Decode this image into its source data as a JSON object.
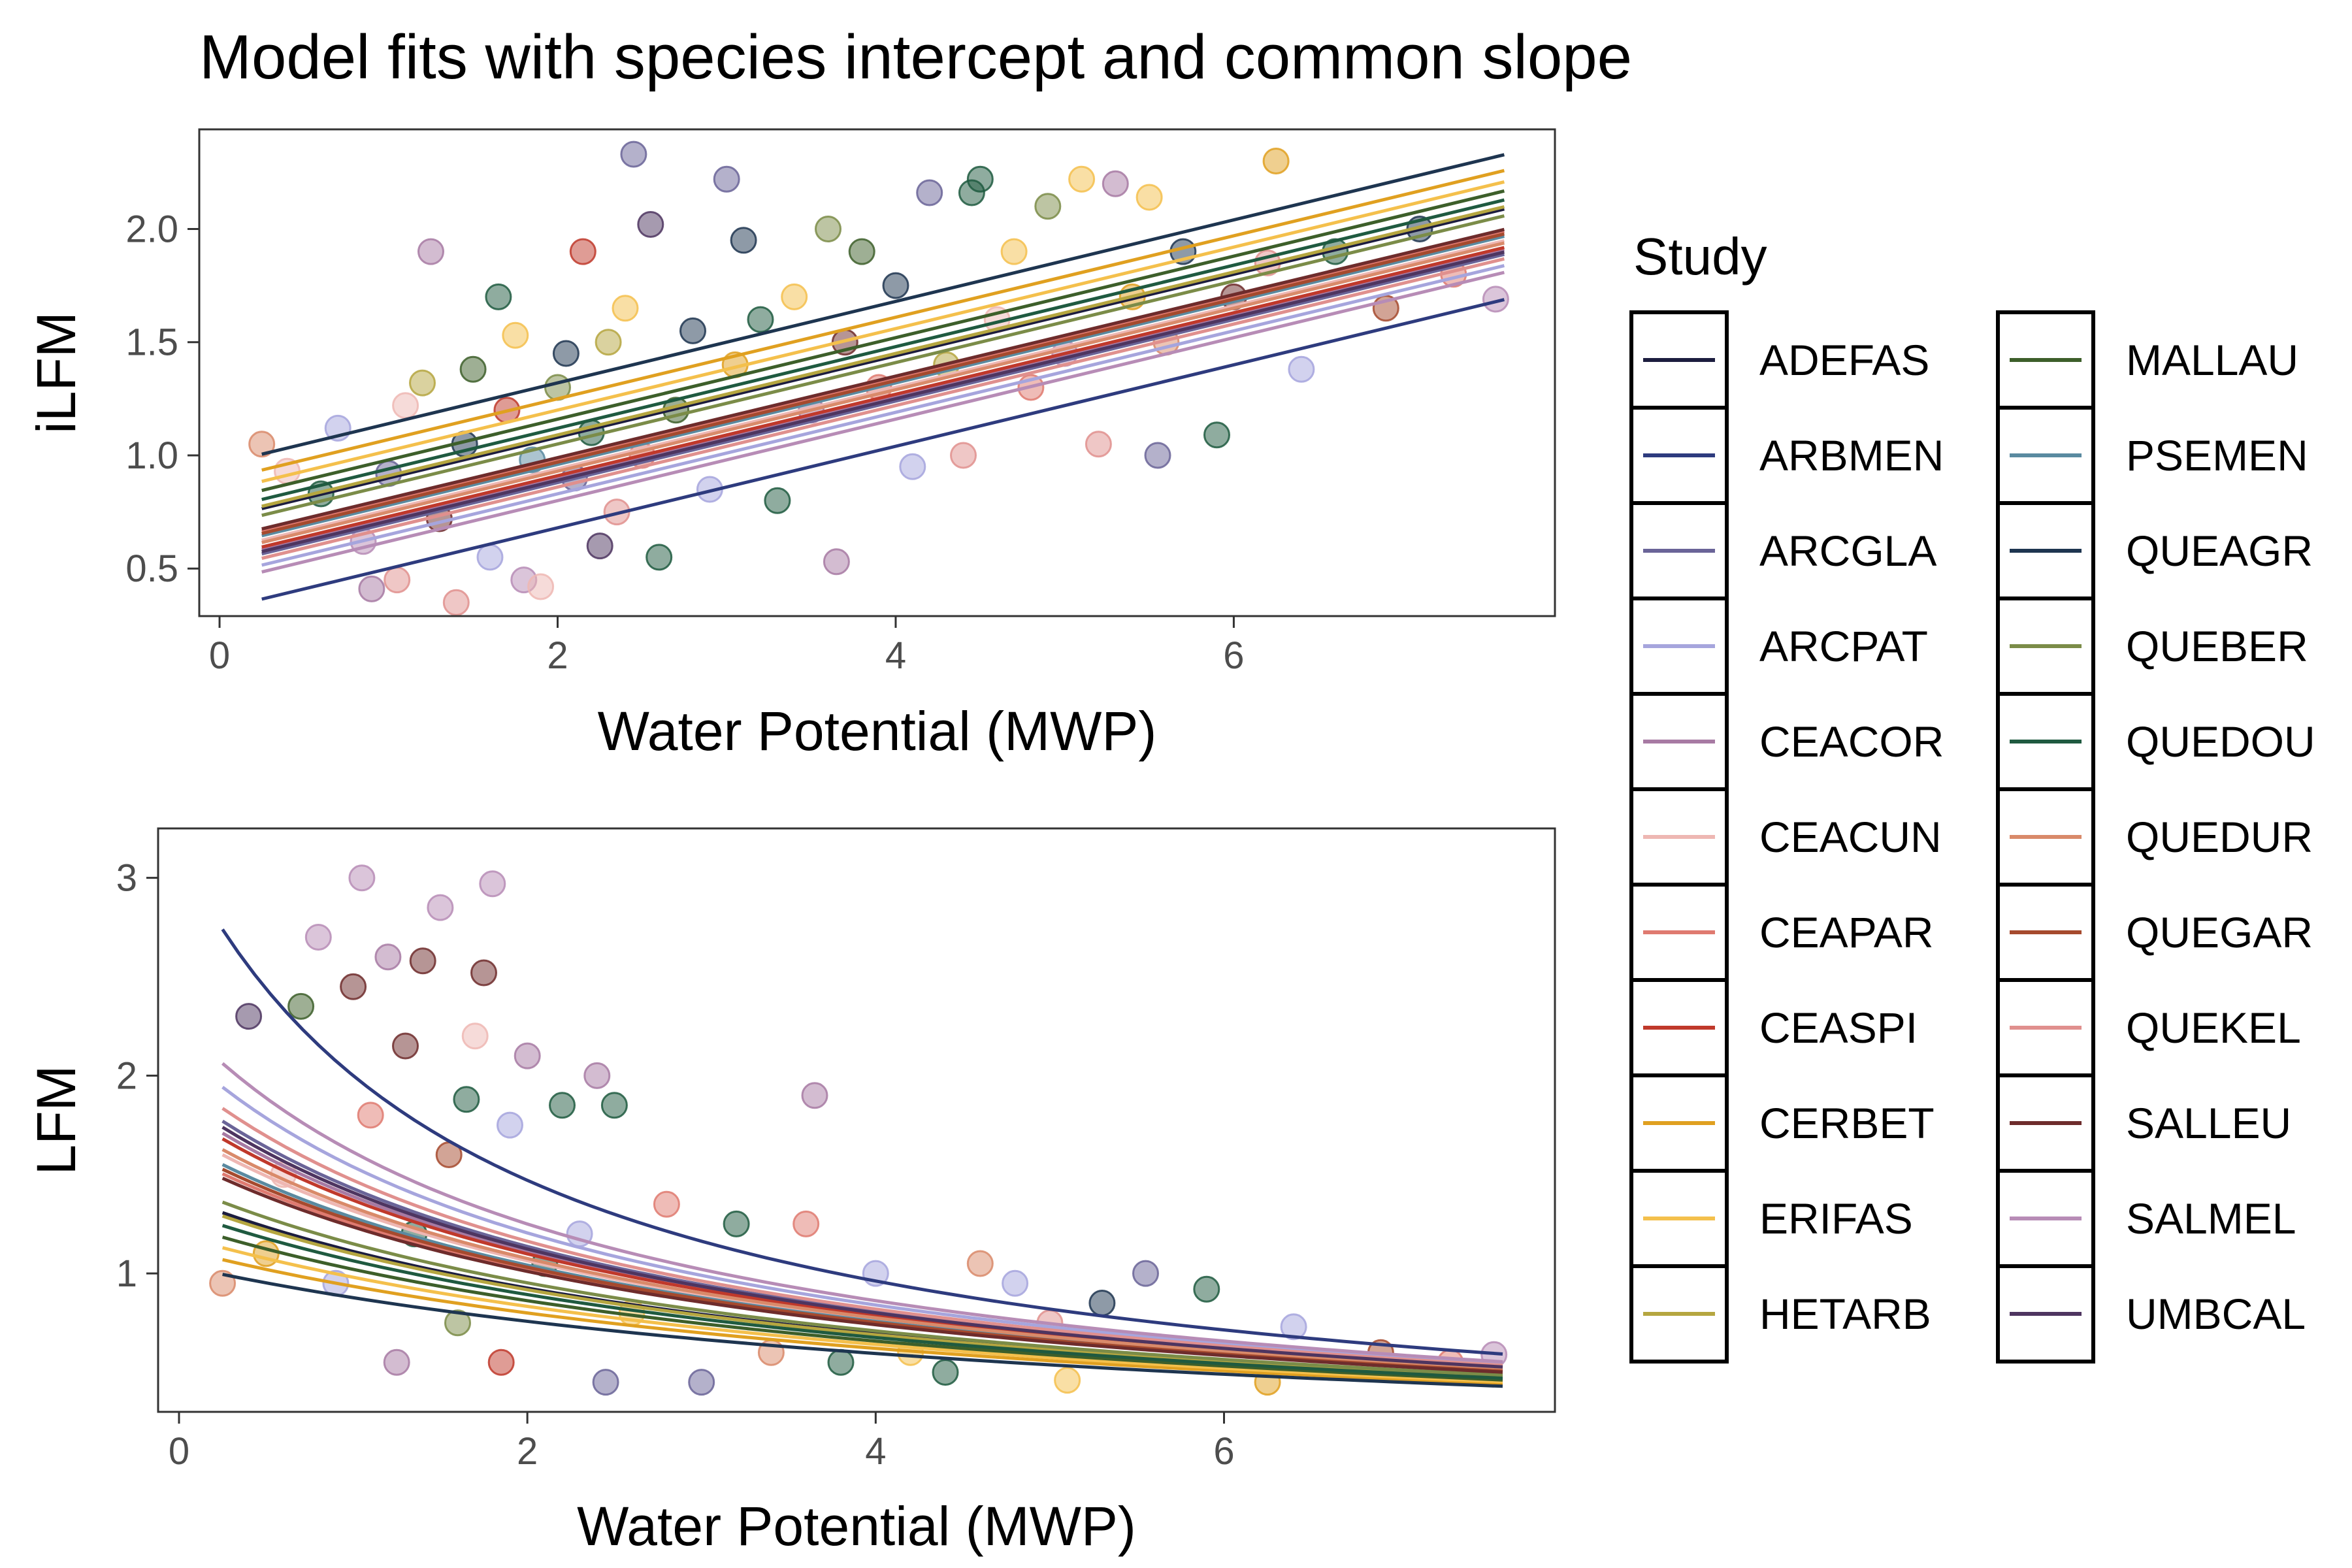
{
  "title": "Model fits with species intercept and common slope",
  "legend": {
    "title": "Study",
    "entries": [
      {
        "label": "ADEFAS",
        "color": "#1c1d3f"
      },
      {
        "label": "ARBMEN",
        "color": "#2e3b7e"
      },
      {
        "label": "ARCGLA",
        "color": "#6a6498"
      },
      {
        "label": "ARCPAT",
        "color": "#a6a5dd"
      },
      {
        "label": "CEACOR",
        "color": "#a77aa3"
      },
      {
        "label": "CEACUN",
        "color": "#eeb7b3"
      },
      {
        "label": "CEAPAR",
        "color": "#df7a70"
      },
      {
        "label": "CEASPI",
        "color": "#c0392b"
      },
      {
        "label": "CERBET",
        "color": "#e0a020"
      },
      {
        "label": "ERIFAS",
        "color": "#f4c04c"
      },
      {
        "label": "HETARB",
        "color": "#b5a640"
      },
      {
        "label": "MALLAU",
        "color": "#3d5f2a"
      },
      {
        "label": "PSEMEN",
        "color": "#5a8aa0"
      },
      {
        "label": "QUEAGR",
        "color": "#1e3550"
      },
      {
        "label": "QUEBER",
        "color": "#7b8c48"
      },
      {
        "label": "QUEDOU",
        "color": "#1f5a40"
      },
      {
        "label": "QUEDUR",
        "color": "#d98a6a"
      },
      {
        "label": "QUEGAR",
        "color": "#a64a2e"
      },
      {
        "label": "QUEKEL",
        "color": "#e0908e"
      },
      {
        "label": "SALLEU",
        "color": "#6e2c2c"
      },
      {
        "label": "SALMEL",
        "color": "#b78cb6"
      },
      {
        "label": "UMBCAL",
        "color": "#4e3560"
      }
    ]
  },
  "chart_data": [
    {
      "type": "scatter",
      "panel": "top",
      "xlabel": "Water Potential (MWP)",
      "ylabel": "iLFM",
      "xlim": [
        -0.12,
        7.9
      ],
      "ylim": [
        0.29,
        2.44
      ],
      "xticks": [
        0,
        2,
        4,
        6
      ],
      "yticks": [
        0.5,
        1.0,
        1.5,
        2.0
      ],
      "ytick_labels": [
        "0.5",
        "1.0",
        "1.5",
        "2.0"
      ],
      "grid": false,
      "common_slope": 0.18,
      "fit_x_range": [
        0.25,
        7.6
      ],
      "series": [
        {
          "name": "ADEFAS",
          "intercept": 0.72
        },
        {
          "name": "ARBMEN",
          "intercept": 0.32
        },
        {
          "name": "ARCGLA",
          "intercept": 0.52
        },
        {
          "name": "ARCPAT",
          "intercept": 0.47
        },
        {
          "name": "CEACOR",
          "intercept": 0.54
        },
        {
          "name": "CEACUN",
          "intercept": 0.58
        },
        {
          "name": "CEAPAR",
          "intercept": 0.62
        },
        {
          "name": "CEASPI",
          "intercept": 0.55
        },
        {
          "name": "CERBET",
          "intercept": 0.89
        },
        {
          "name": "ERIFAS",
          "intercept": 0.84
        },
        {
          "name": "HETARB",
          "intercept": 0.73
        },
        {
          "name": "MALLAU",
          "intercept": 0.8
        },
        {
          "name": "PSEMEN",
          "intercept": 0.6
        },
        {
          "name": "QUEAGR",
          "intercept": 0.96
        },
        {
          "name": "QUEBER",
          "intercept": 0.69
        },
        {
          "name": "QUEDOU",
          "intercept": 0.76
        },
        {
          "name": "QUEDUR",
          "intercept": 0.57
        },
        {
          "name": "QUEGAR",
          "intercept": 0.61
        },
        {
          "name": "QUEKEL",
          "intercept": 0.5
        },
        {
          "name": "SALLEU",
          "intercept": 0.63
        },
        {
          "name": "SALMEL",
          "intercept": 0.44
        },
        {
          "name": "UMBCAL",
          "intercept": 0.53
        }
      ],
      "points": [
        {
          "x": 0.25,
          "y": 1.05,
          "s": "QUEDUR"
        },
        {
          "x": 0.4,
          "y": 0.93,
          "s": "CEACUN"
        },
        {
          "x": 0.6,
          "y": 0.83,
          "s": "QUEDOU"
        },
        {
          "x": 0.7,
          "y": 1.12,
          "s": "ARCPAT"
        },
        {
          "x": 0.85,
          "y": 0.62,
          "s": "SALMEL"
        },
        {
          "x": 0.9,
          "y": 0.41,
          "s": "CEACOR"
        },
        {
          "x": 1.0,
          "y": 0.92,
          "s": "ARCGLA"
        },
        {
          "x": 1.05,
          "y": 0.45,
          "s": "QUEKEL"
        },
        {
          "x": 1.1,
          "y": 1.22,
          "s": "CEACUN"
        },
        {
          "x": 1.2,
          "y": 1.32,
          "s": "HETARB"
        },
        {
          "x": 1.25,
          "y": 1.9,
          "s": "CEACOR"
        },
        {
          "x": 1.3,
          "y": 0.72,
          "s": "SALLEU"
        },
        {
          "x": 1.4,
          "y": 0.35,
          "s": "QUEKEL"
        },
        {
          "x": 1.45,
          "y": 1.05,
          "s": "QUEAGR"
        },
        {
          "x": 1.5,
          "y": 1.38,
          "s": "MALLAU"
        },
        {
          "x": 1.6,
          "y": 0.55,
          "s": "ARCPAT"
        },
        {
          "x": 1.65,
          "y": 1.7,
          "s": "QUEDOU"
        },
        {
          "x": 1.7,
          "y": 1.2,
          "s": "CEASPI"
        },
        {
          "x": 1.75,
          "y": 1.53,
          "s": "ERIFAS"
        },
        {
          "x": 1.8,
          "y": 0.45,
          "s": "SALMEL"
        },
        {
          "x": 1.85,
          "y": 0.98,
          "s": "PSEMEN"
        },
        {
          "x": 1.9,
          "y": 0.42,
          "s": "CEACUN"
        },
        {
          "x": 2.0,
          "y": 1.3,
          "s": "QUEBER"
        },
        {
          "x": 2.05,
          "y": 1.45,
          "s": "QUEAGR"
        },
        {
          "x": 2.1,
          "y": 0.9,
          "s": "ARCGLA"
        },
        {
          "x": 2.15,
          "y": 1.9,
          "s": "CEASPI"
        },
        {
          "x": 2.2,
          "y": 1.1,
          "s": "QUEDOU"
        },
        {
          "x": 2.25,
          "y": 0.6,
          "s": "UMBCAL"
        },
        {
          "x": 2.3,
          "y": 1.5,
          "s": "HETARB"
        },
        {
          "x": 2.35,
          "y": 0.75,
          "s": "QUEKEL"
        },
        {
          "x": 2.4,
          "y": 1.65,
          "s": "ERIFAS"
        },
        {
          "x": 2.45,
          "y": 2.33,
          "s": "ARCGLA"
        },
        {
          "x": 2.5,
          "y": 1.0,
          "s": "CEAPAR"
        },
        {
          "x": 2.55,
          "y": 2.02,
          "s": "UMBCAL"
        },
        {
          "x": 2.6,
          "y": 0.55,
          "s": "QUEDOU"
        },
        {
          "x": 2.7,
          "y": 1.2,
          "s": "MALLAU"
        },
        {
          "x": 2.8,
          "y": 1.55,
          "s": "QUEAGR"
        },
        {
          "x": 2.9,
          "y": 0.85,
          "s": "ARCPAT"
        },
        {
          "x": 3.0,
          "y": 2.22,
          "s": "ARCGLA"
        },
        {
          "x": 3.05,
          "y": 1.4,
          "s": "CERBET"
        },
        {
          "x": 3.1,
          "y": 1.95,
          "s": "QUEAGR"
        },
        {
          "x": 3.2,
          "y": 1.6,
          "s": "QUEDOU"
        },
        {
          "x": 3.3,
          "y": 0.8,
          "s": "QUEDOU"
        },
        {
          "x": 3.4,
          "y": 1.7,
          "s": "ERIFAS"
        },
        {
          "x": 3.5,
          "y": 1.2,
          "s": "CEACOR"
        },
        {
          "x": 3.6,
          "y": 2.0,
          "s": "QUEBER"
        },
        {
          "x": 3.65,
          "y": 0.53,
          "s": "CEACOR"
        },
        {
          "x": 3.7,
          "y": 1.5,
          "s": "SALLEU"
        },
        {
          "x": 3.8,
          "y": 1.9,
          "s": "MALLAU"
        },
        {
          "x": 3.9,
          "y": 1.3,
          "s": "CEAPAR"
        },
        {
          "x": 4.0,
          "y": 1.75,
          "s": "QUEAGR"
        },
        {
          "x": 4.1,
          "y": 0.95,
          "s": "ARCPAT"
        },
        {
          "x": 4.2,
          "y": 2.16,
          "s": "ARCGLA"
        },
        {
          "x": 4.3,
          "y": 1.4,
          "s": "HETARB"
        },
        {
          "x": 4.4,
          "y": 1.0,
          "s": "QUEKEL"
        },
        {
          "x": 4.45,
          "y": 2.16,
          "s": "QUEDOU"
        },
        {
          "x": 4.5,
          "y": 2.22,
          "s": "QUEDOU"
        },
        {
          "x": 4.6,
          "y": 1.6,
          "s": "CEACUN"
        },
        {
          "x": 4.7,
          "y": 1.9,
          "s": "ERIFAS"
        },
        {
          "x": 4.8,
          "y": 1.3,
          "s": "CEAPAR"
        },
        {
          "x": 4.9,
          "y": 2.1,
          "s": "QUEBER"
        },
        {
          "x": 5.0,
          "y": 1.45,
          "s": "SALMEL"
        },
        {
          "x": 5.1,
          "y": 2.22,
          "s": "ERIFAS"
        },
        {
          "x": 5.2,
          "y": 1.05,
          "s": "QUEKEL"
        },
        {
          "x": 5.3,
          "y": 2.2,
          "s": "CEACOR"
        },
        {
          "x": 5.4,
          "y": 1.7,
          "s": "CERBET"
        },
        {
          "x": 5.5,
          "y": 2.14,
          "s": "ERIFAS"
        },
        {
          "x": 5.55,
          "y": 1.0,
          "s": "ARCGLA"
        },
        {
          "x": 5.6,
          "y": 1.5,
          "s": "QUEDUR"
        },
        {
          "x": 5.7,
          "y": 1.9,
          "s": "QUEAGR"
        },
        {
          "x": 5.9,
          "y": 1.09,
          "s": "QUEDOU"
        },
        {
          "x": 6.0,
          "y": 1.7,
          "s": "SALLEU"
        },
        {
          "x": 6.2,
          "y": 1.85,
          "s": "QUEKEL"
        },
        {
          "x": 6.25,
          "y": 2.3,
          "s": "CERBET"
        },
        {
          "x": 6.4,
          "y": 1.38,
          "s": "ARCPAT"
        },
        {
          "x": 6.6,
          "y": 1.9,
          "s": "QUEDOU"
        },
        {
          "x": 6.9,
          "y": 1.65,
          "s": "QUEGAR"
        },
        {
          "x": 7.1,
          "y": 2.0,
          "s": "QUEAGR"
        },
        {
          "x": 7.3,
          "y": 1.8,
          "s": "CEAPAR"
        },
        {
          "x": 7.55,
          "y": 1.69,
          "s": "SALMEL"
        }
      ]
    },
    {
      "type": "scatter",
      "panel": "bottom",
      "xlabel": "Water Potential (MWP)",
      "ylabel": "LFM",
      "xlim": [
        -0.12,
        7.9
      ],
      "ylim": [
        0.3,
        3.25
      ],
      "xticks": [
        0,
        2,
        4,
        6
      ],
      "yticks": [
        1,
        2,
        3
      ],
      "ytick_labels": [
        "1",
        "2",
        "3"
      ],
      "grid": false,
      "fit_form": "LFM = 1 / (intercept + common_slope * x)",
      "common_slope": 0.18,
      "fit_x_range": [
        0.25,
        7.6
      ],
      "series": [
        {
          "name": "ADEFAS",
          "intercept": 0.72
        },
        {
          "name": "ARBMEN",
          "intercept": 0.32
        },
        {
          "name": "ARCGLA",
          "intercept": 0.52
        },
        {
          "name": "ARCPAT",
          "intercept": 0.47
        },
        {
          "name": "CEACOR",
          "intercept": 0.54
        },
        {
          "name": "CEACUN",
          "intercept": 0.58
        },
        {
          "name": "CEAPAR",
          "intercept": 0.62
        },
        {
          "name": "CEASPI",
          "intercept": 0.55
        },
        {
          "name": "CERBET",
          "intercept": 0.89
        },
        {
          "name": "ERIFAS",
          "intercept": 0.84
        },
        {
          "name": "HETARB",
          "intercept": 0.73
        },
        {
          "name": "MALLAU",
          "intercept": 0.8
        },
        {
          "name": "PSEMEN",
          "intercept": 0.6
        },
        {
          "name": "QUEAGR",
          "intercept": 0.96
        },
        {
          "name": "QUEBER",
          "intercept": 0.69
        },
        {
          "name": "QUEDOU",
          "intercept": 0.76
        },
        {
          "name": "QUEDUR",
          "intercept": 0.57
        },
        {
          "name": "QUEGAR",
          "intercept": 0.61
        },
        {
          "name": "QUEKEL",
          "intercept": 0.5
        },
        {
          "name": "SALLEU",
          "intercept": 0.63
        },
        {
          "name": "SALMEL",
          "intercept": 0.44
        },
        {
          "name": "UMBCAL",
          "intercept": 0.53
        }
      ],
      "points": [
        {
          "x": 0.25,
          "y": 0.95,
          "s": "QUEDUR"
        },
        {
          "x": 0.4,
          "y": 2.3,
          "s": "UMBCAL"
        },
        {
          "x": 0.5,
          "y": 1.1,
          "s": "CERBET"
        },
        {
          "x": 0.6,
          "y": 1.5,
          "s": "CEACUN"
        },
        {
          "x": 0.7,
          "y": 2.35,
          "s": "MALLAU"
        },
        {
          "x": 0.8,
          "y": 2.7,
          "s": "SALMEL"
        },
        {
          "x": 0.9,
          "y": 0.95,
          "s": "ARCPAT"
        },
        {
          "x": 1.0,
          "y": 2.45,
          "s": "SALLEU"
        },
        {
          "x": 1.05,
          "y": 3.0,
          "s": "SALMEL"
        },
        {
          "x": 1.1,
          "y": 1.8,
          "s": "CEAPAR"
        },
        {
          "x": 1.2,
          "y": 2.6,
          "s": "CEACOR"
        },
        {
          "x": 1.25,
          "y": 0.55,
          "s": "CEACOR"
        },
        {
          "x": 1.3,
          "y": 2.15,
          "s": "SALLEU"
        },
        {
          "x": 1.35,
          "y": 1.2,
          "s": "QUEDOU"
        },
        {
          "x": 1.4,
          "y": 2.58,
          "s": "SALLEU"
        },
        {
          "x": 1.5,
          "y": 2.85,
          "s": "SALMEL"
        },
        {
          "x": 1.55,
          "y": 1.6,
          "s": "QUEGAR"
        },
        {
          "x": 1.6,
          "y": 0.75,
          "s": "QUEBER"
        },
        {
          "x": 1.65,
          "y": 1.88,
          "s": "QUEDOU"
        },
        {
          "x": 1.7,
          "y": 2.2,
          "s": "CEACUN"
        },
        {
          "x": 1.75,
          "y": 2.52,
          "s": "SALLEU"
        },
        {
          "x": 1.8,
          "y": 2.97,
          "s": "SALMEL"
        },
        {
          "x": 1.85,
          "y": 0.55,
          "s": "CEASPI"
        },
        {
          "x": 1.9,
          "y": 1.75,
          "s": "ARCPAT"
        },
        {
          "x": 2.0,
          "y": 2.1,
          "s": "CEACOR"
        },
        {
          "x": 2.1,
          "y": 1.05,
          "s": "QUEDOU"
        },
        {
          "x": 2.2,
          "y": 1.85,
          "s": "QUEDOU"
        },
        {
          "x": 2.3,
          "y": 1.2,
          "s": "ARCPAT"
        },
        {
          "x": 2.4,
          "y": 2.0,
          "s": "CEACOR"
        },
        {
          "x": 2.45,
          "y": 0.45,
          "s": "ARCGLA"
        },
        {
          "x": 2.5,
          "y": 1.85,
          "s": "QUEDOU"
        },
        {
          "x": 2.6,
          "y": 0.8,
          "s": "ERIFAS"
        },
        {
          "x": 2.8,
          "y": 1.35,
          "s": "CEAPAR"
        },
        {
          "x": 3.0,
          "y": 0.45,
          "s": "ARCGLA"
        },
        {
          "x": 3.2,
          "y": 1.25,
          "s": "QUEDOU"
        },
        {
          "x": 3.4,
          "y": 0.6,
          "s": "QUEDUR"
        },
        {
          "x": 3.6,
          "y": 1.25,
          "s": "CEAPAR"
        },
        {
          "x": 3.65,
          "y": 1.9,
          "s": "CEACOR"
        },
        {
          "x": 3.8,
          "y": 0.55,
          "s": "QUEDOU"
        },
        {
          "x": 4.0,
          "y": 1.0,
          "s": "ARCPAT"
        },
        {
          "x": 4.2,
          "y": 0.6,
          "s": "ERIFAS"
        },
        {
          "x": 4.4,
          "y": 0.5,
          "s": "QUEDOU"
        },
        {
          "x": 4.6,
          "y": 1.05,
          "s": "QUEDUR"
        },
        {
          "x": 4.8,
          "y": 0.95,
          "s": "ARCPAT"
        },
        {
          "x": 5.0,
          "y": 0.75,
          "s": "QUEKEL"
        },
        {
          "x": 5.1,
          "y": 0.46,
          "s": "ERIFAS"
        },
        {
          "x": 5.3,
          "y": 0.85,
          "s": "QUEAGR"
        },
        {
          "x": 5.55,
          "y": 1.0,
          "s": "ARCGLA"
        },
        {
          "x": 5.9,
          "y": 0.92,
          "s": "QUEDOU"
        },
        {
          "x": 6.25,
          "y": 0.45,
          "s": "CERBET"
        },
        {
          "x": 6.4,
          "y": 0.73,
          "s": "ARCPAT"
        },
        {
          "x": 6.9,
          "y": 0.6,
          "s": "QUEGAR"
        },
        {
          "x": 7.3,
          "y": 0.55,
          "s": "CEAPAR"
        },
        {
          "x": 7.55,
          "y": 0.59,
          "s": "SALMEL"
        }
      ]
    }
  ]
}
